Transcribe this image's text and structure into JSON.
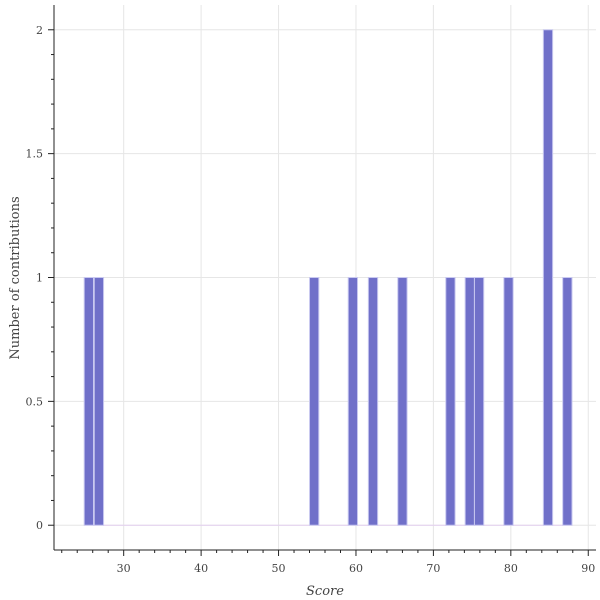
{
  "chart_data": {
    "type": "bar",
    "xlabel": "Score",
    "ylabel": "Number of contributions",
    "xlim": [
      21,
      91
    ],
    "ylim": [
      -0.1,
      2.1
    ],
    "xticks": [
      "30",
      "40",
      "50",
      "60",
      "70",
      "80",
      "90"
    ],
    "yticks": [
      "0",
      "0.5",
      "1",
      "1.5",
      "2"
    ],
    "bin_width": 1.2,
    "bars": [
      {
        "x": 25.5,
        "value": 1
      },
      {
        "x": 26.8,
        "value": 1
      },
      {
        "x": 54.6,
        "value": 1
      },
      {
        "x": 59.6,
        "value": 1
      },
      {
        "x": 62.2,
        "value": 1
      },
      {
        "x": 66.0,
        "value": 1
      },
      {
        "x": 72.2,
        "value": 1
      },
      {
        "x": 74.7,
        "value": 1
      },
      {
        "x": 75.9,
        "value": 1
      },
      {
        "x": 79.7,
        "value": 1
      },
      {
        "x": 84.8,
        "value": 2
      },
      {
        "x": 87.3,
        "value": 1
      }
    ],
    "grid": true,
    "colors": {
      "bar": "#7070c9",
      "bar_edge": "#c9c9f0",
      "baseline": "#e3cff0"
    }
  }
}
